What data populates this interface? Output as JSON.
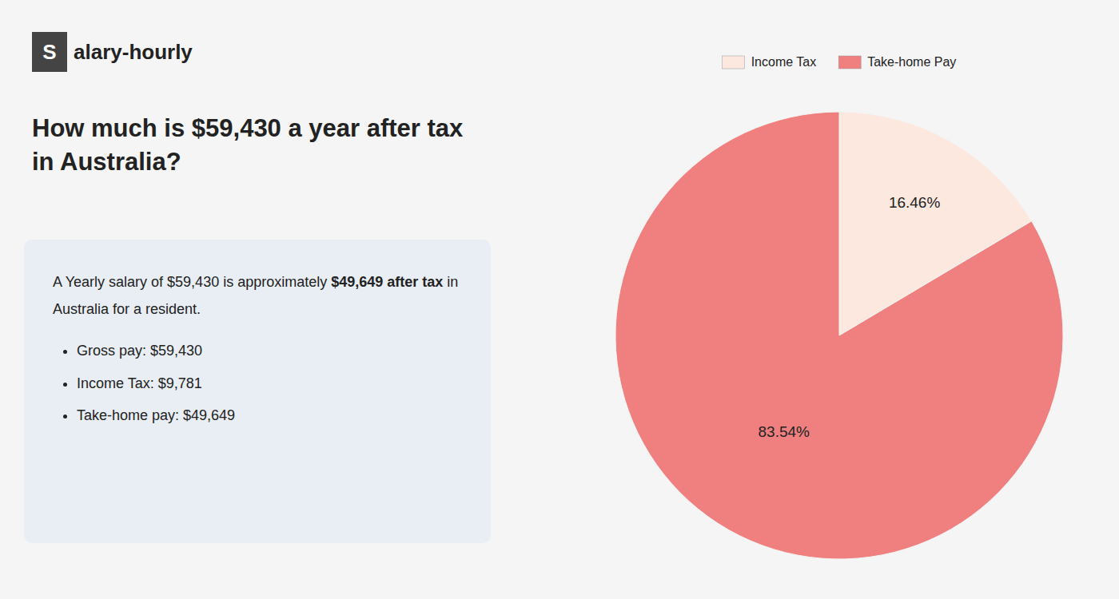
{
  "chart_data": {
    "type": "pie",
    "title": "How much is $59,430 a year after tax in Australia?",
    "categories": [
      "Income Tax",
      "Take-home Pay"
    ],
    "values": [
      16.46,
      83.54
    ],
    "value_labels": [
      "16.46%",
      "83.54%"
    ],
    "colors": [
      "#fde8e0",
      "#f08080"
    ],
    "data_labels": true,
    "legend": "top",
    "annotations": [
      "S",
      "alary-hourly",
      "A Yearly salary of $59,430 is approximately ",
      "$49,649 after tax",
      " in",
      "Australia for a resident.",
      "Gross pay: $59,430",
      "Income Tax: $9,781",
      "Take-home pay: $49,649"
    ]
  }
}
